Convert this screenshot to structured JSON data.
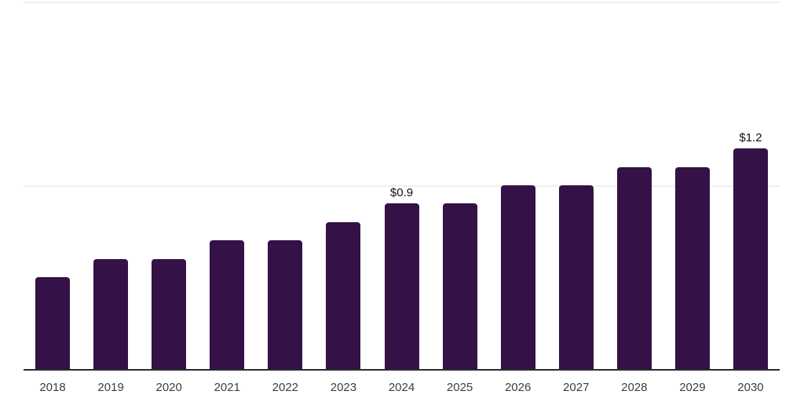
{
  "chart_data": {
    "type": "bar",
    "categories": [
      "2018",
      "2019",
      "2020",
      "2021",
      "2022",
      "2023",
      "2024",
      "2025",
      "2026",
      "2027",
      "2028",
      "2029",
      "2030"
    ],
    "values": [
      0.5,
      0.6,
      0.6,
      0.7,
      0.7,
      0.8,
      0.9,
      0.9,
      1.0,
      1.0,
      1.1,
      1.1,
      1.2
    ],
    "bar_labels": [
      "",
      "",
      "",
      "",
      "",
      "",
      "$0.9",
      "",
      "",
      "",
      "",
      "",
      "$1.2"
    ],
    "xlabel": "",
    "ylabel": "",
    "ylim": [
      0,
      2
    ],
    "gridlines_at": [
      1,
      2
    ],
    "grid": "horizontal, very faint",
    "legend": "none",
    "colors": {
      "bar": "#341147",
      "axis": "#2b2b2b",
      "gridline": "#f0f0f0",
      "tick_label": "#3d3d3d",
      "value_label": "#111111",
      "background": "#ffffff"
    }
  }
}
